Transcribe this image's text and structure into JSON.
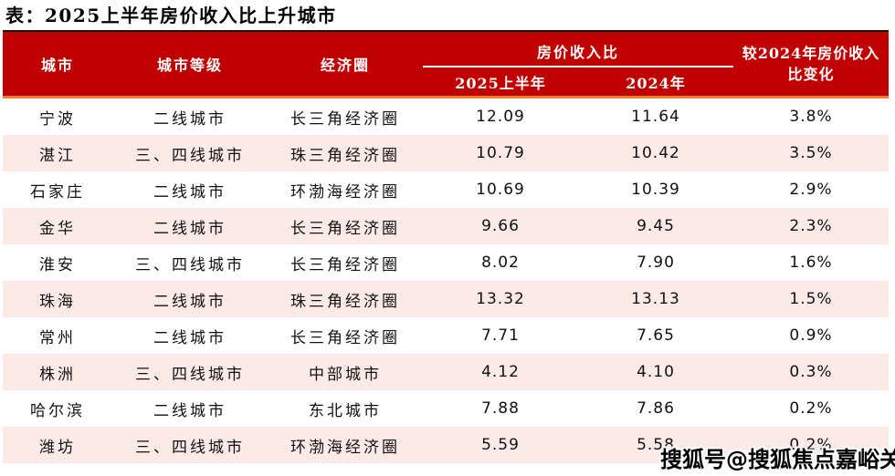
{
  "title": "表：2025上半年房价收入比上升城市",
  "colors": {
    "header_red": "#C00000",
    "orange_divider": "#ED7D31",
    "row_pink": "#FCEAE7",
    "top_border": "#141414",
    "header_text": "#ffffff"
  },
  "table": {
    "headers": {
      "city": "城市",
      "tier": "城市等级",
      "region": "经济圈",
      "ratio_group": "房价收入比",
      "ratio_2025": "2025上半年",
      "ratio_2024": "2024年",
      "change": "较2024年房价收入比变化"
    },
    "rows": [
      {
        "city": "宁波",
        "tier": "二线城市",
        "region": "长三角经济圈",
        "ratio_2025": "12.09",
        "ratio_2024": "11.64",
        "change": "3.8%"
      },
      {
        "city": "湛江",
        "tier": "三、四线城市",
        "region": "珠三角经济圈",
        "ratio_2025": "10.79",
        "ratio_2024": "10.42",
        "change": "3.5%"
      },
      {
        "city": "石家庄",
        "tier": "二线城市",
        "region": "环渤海经济圈",
        "ratio_2025": "10.69",
        "ratio_2024": "10.39",
        "change": "2.9%"
      },
      {
        "city": "金华",
        "tier": "二线城市",
        "region": "长三角经济圈",
        "ratio_2025": "9.66",
        "ratio_2024": "9.45",
        "change": "2.3%"
      },
      {
        "city": "淮安",
        "tier": "三、四线城市",
        "region": "长三角经济圈",
        "ratio_2025": "8.02",
        "ratio_2024": "7.90",
        "change": "1.6%"
      },
      {
        "city": "珠海",
        "tier": "二线城市",
        "region": "珠三角经济圈",
        "ratio_2025": "13.32",
        "ratio_2024": "13.13",
        "change": "1.5%"
      },
      {
        "city": "常州",
        "tier": "二线城市",
        "region": "长三角经济圈",
        "ratio_2025": "7.71",
        "ratio_2024": "7.65",
        "change": "0.9%"
      },
      {
        "city": "株洲",
        "tier": "三、四线城市",
        "region": "中部城市",
        "ratio_2025": "4.12",
        "ratio_2024": "4.10",
        "change": "0.3%"
      },
      {
        "city": "哈尔滨",
        "tier": "二线城市",
        "region": "东北城市",
        "ratio_2025": "7.88",
        "ratio_2024": "7.86",
        "change": "0.2%"
      },
      {
        "city": "潍坊",
        "tier": "三、四线城市",
        "region": "环渤海经济圈",
        "ratio_2025": "5.59",
        "ratio_2024": "5.58",
        "change": "0.2%"
      }
    ]
  },
  "watermark": "搜狐号@搜狐焦点嘉峪关站",
  "chart_data": {
    "type": "table",
    "title": "表：2025上半年房价收入比上升城市",
    "columns": [
      "城市",
      "城市等级",
      "经济圈",
      "房价收入比 2025上半年",
      "房价收入比 2024年",
      "较2024年房价收入比变化"
    ],
    "rows": [
      [
        "宁波",
        "二线城市",
        "长三角经济圈",
        12.09,
        11.64,
        "3.8%"
      ],
      [
        "湛江",
        "三、四线城市",
        "珠三角经济圈",
        10.79,
        10.42,
        "3.5%"
      ],
      [
        "石家庄",
        "二线城市",
        "环渤海经济圈",
        10.69,
        10.39,
        "2.9%"
      ],
      [
        "金华",
        "二线城市",
        "长三角经济圈",
        9.66,
        9.45,
        "2.3%"
      ],
      [
        "淮安",
        "三、四线城市",
        "长三角经济圈",
        8.02,
        7.9,
        "1.6%"
      ],
      [
        "珠海",
        "二线城市",
        "珠三角经济圈",
        13.32,
        13.13,
        "1.5%"
      ],
      [
        "常州",
        "二线城市",
        "长三角经济圈",
        7.71,
        7.65,
        "0.9%"
      ],
      [
        "株洲",
        "三、四线城市",
        "中部城市",
        4.12,
        4.1,
        "0.3%"
      ],
      [
        "哈尔滨",
        "二线城市",
        "东北城市",
        7.88,
        7.86,
        "0.2%"
      ],
      [
        "潍坊",
        "三、四线城市",
        "环渤海经济圈",
        5.59,
        5.58,
        "0.2%"
      ]
    ]
  }
}
